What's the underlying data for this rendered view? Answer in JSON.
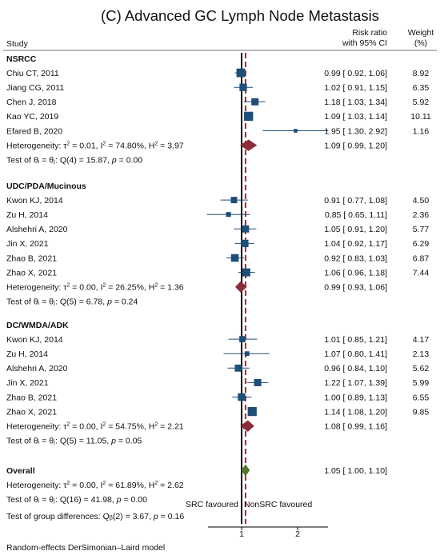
{
  "title": "(C)    Advanced GC Lymph Node Metastasis",
  "headers": {
    "study": "Study",
    "rr_line1": "Risk ratio",
    "rr_line2": "with 95% CI",
    "weight_line1": "Weight",
    "weight_line2": "(%)"
  },
  "footer": "Random-effects DerSimonian–Laird model",
  "favour_left": "SRC favoured",
  "favour_right": "NonSRC favoured",
  "overall_heterogeneity": "Heterogeneity: τ² = 0.00, I² = 61.89%, H² = 2.62",
  "overall_test": "Test of θᵢ = θⱼ: Q(16) = 41.98, p = 0.00",
  "group_diff_test": "Test of group differences: Qᵦ(2) = 3.67, p = 0.16",
  "colors": {
    "study": "#1f4e79",
    "subgroup_diamond": "#8b2e3a",
    "overall_diamond": "#4f7a2a",
    "ref_line": "#c0202a"
  },
  "chart_data": {
    "type": "forest",
    "x_scale": "log",
    "x_ticks": [
      1,
      2
    ],
    "null_line": 1,
    "overall_line": 1.05,
    "groups": [
      {
        "name": "NSRCC",
        "studies": [
          {
            "name": "Chiu CT, 2011",
            "rr": 0.99,
            "lo": 0.92,
            "hi": 1.06,
            "weight": 8.92,
            "label": "0.99 [ 0.92, 1.06]",
            "wlabel": "8.92"
          },
          {
            "name": "Jiang CG, 2011",
            "rr": 1.02,
            "lo": 0.91,
            "hi": 1.15,
            "weight": 6.35,
            "label": "1.02 [ 0.91, 1.15]",
            "wlabel": "6.35"
          },
          {
            "name": "Chen J, 2018",
            "rr": 1.18,
            "lo": 1.03,
            "hi": 1.34,
            "weight": 5.92,
            "label": "1.18 [ 1.03, 1.34]",
            "wlabel": "5.92"
          },
          {
            "name": "Kao YC, 2019",
            "rr": 1.09,
            "lo": 1.03,
            "hi": 1.14,
            "weight": 10.11,
            "label": "1.09 [ 1.03, 1.14]",
            "wlabel": "10.11"
          },
          {
            "name": "Efared B, 2020",
            "rr": 1.95,
            "lo": 1.3,
            "hi": 2.92,
            "weight": 1.16,
            "label": "1.95 [ 1.30, 2.92]",
            "wlabel": "1.16"
          }
        ],
        "summary": {
          "rr": 1.09,
          "lo": 0.99,
          "hi": 1.2,
          "label": "1.09 [ 0.99, 1.20]"
        },
        "heterogeneity": "Heterogeneity: τ² = 0.01, I² = 74.80%, H² = 3.97",
        "test": "Test of θᵢ = θⱼ: Q(4) = 15.87, p = 0.00"
      },
      {
        "name": "UDC/PDA/Mucinous",
        "studies": [
          {
            "name": "Kwon KJ, 2014",
            "rr": 0.91,
            "lo": 0.77,
            "hi": 1.08,
            "weight": 4.5,
            "label": "0.91 [ 0.77, 1.08]",
            "wlabel": "4.50"
          },
          {
            "name": "Zu H, 2014",
            "rr": 0.85,
            "lo": 0.65,
            "hi": 1.11,
            "weight": 2.36,
            "label": "0.85 [ 0.65, 1.11]",
            "wlabel": "2.36"
          },
          {
            "name": "Alshehri A, 2020",
            "rr": 1.05,
            "lo": 0.91,
            "hi": 1.2,
            "weight": 5.77,
            "label": "1.05 [ 0.91, 1.20]",
            "wlabel": "5.77"
          },
          {
            "name": "Jin X, 2021",
            "rr": 1.04,
            "lo": 0.92,
            "hi": 1.17,
            "weight": 6.29,
            "label": "1.04 [ 0.92, 1.17]",
            "wlabel": "6.29"
          },
          {
            "name": "Zhao B, 2021",
            "rr": 0.92,
            "lo": 0.83,
            "hi": 1.03,
            "weight": 6.87,
            "label": "0.92 [ 0.83, 1.03]",
            "wlabel": "6.87"
          },
          {
            "name": "Zhao X, 2021",
            "rr": 1.06,
            "lo": 0.96,
            "hi": 1.18,
            "weight": 7.44,
            "label": "1.06 [ 0.96, 1.18]",
            "wlabel": "7.44"
          }
        ],
        "summary": {
          "rr": 0.99,
          "lo": 0.93,
          "hi": 1.06,
          "label": "0.99 [ 0.93, 1.06]"
        },
        "heterogeneity": "Heterogeneity: τ² = 0.00, I² = 26.25%, H² = 1.36",
        "test": "Test of θᵢ = θⱼ: Q(5) = 6.78, p = 0.24"
      },
      {
        "name": "DC/WMDA/ADK",
        "studies": [
          {
            "name": "Kwon KJ, 2014",
            "rr": 1.01,
            "lo": 0.85,
            "hi": 1.21,
            "weight": 4.17,
            "label": "1.01 [ 0.85, 1.21]",
            "wlabel": "4.17"
          },
          {
            "name": "Zu H, 2014",
            "rr": 1.07,
            "lo": 0.8,
            "hi": 1.41,
            "weight": 2.13,
            "label": "1.07 [ 0.80, 1.41]",
            "wlabel": "2.13"
          },
          {
            "name": "Alshehri A, 2020",
            "rr": 0.96,
            "lo": 0.84,
            "hi": 1.1,
            "weight": 5.62,
            "label": "0.96 [ 0.84, 1.10]",
            "wlabel": "5.62"
          },
          {
            "name": "Jin X, 2021",
            "rr": 1.22,
            "lo": 1.07,
            "hi": 1.39,
            "weight": 5.99,
            "label": "1.22 [ 1.07, 1.39]",
            "wlabel": "5.99"
          },
          {
            "name": "Zhao B, 2021",
            "rr": 1.0,
            "lo": 0.89,
            "hi": 1.13,
            "weight": 6.55,
            "label": "1.00 [ 0.89, 1.13]",
            "wlabel": "6.55"
          },
          {
            "name": "Zhao X, 2021",
            "rr": 1.14,
            "lo": 1.08,
            "hi": 1.2,
            "weight": 9.85,
            "label": "1.14 [ 1.08, 1.20]",
            "wlabel": "9.85"
          }
        ],
        "summary": {
          "rr": 1.08,
          "lo": 0.99,
          "hi": 1.16,
          "label": "1.08 [ 0.99, 1.16]"
        },
        "heterogeneity": "Heterogeneity: τ² = 0.00, I² = 54.75%, H² = 2.21",
        "test": "Test of θᵢ = θⱼ: Q(5) = 11.05, p = 0.05"
      }
    ],
    "overall": {
      "name": "Overall",
      "rr": 1.05,
      "lo": 1.0,
      "hi": 1.1,
      "label": "1.05 [ 1.00, 1.10]"
    }
  }
}
